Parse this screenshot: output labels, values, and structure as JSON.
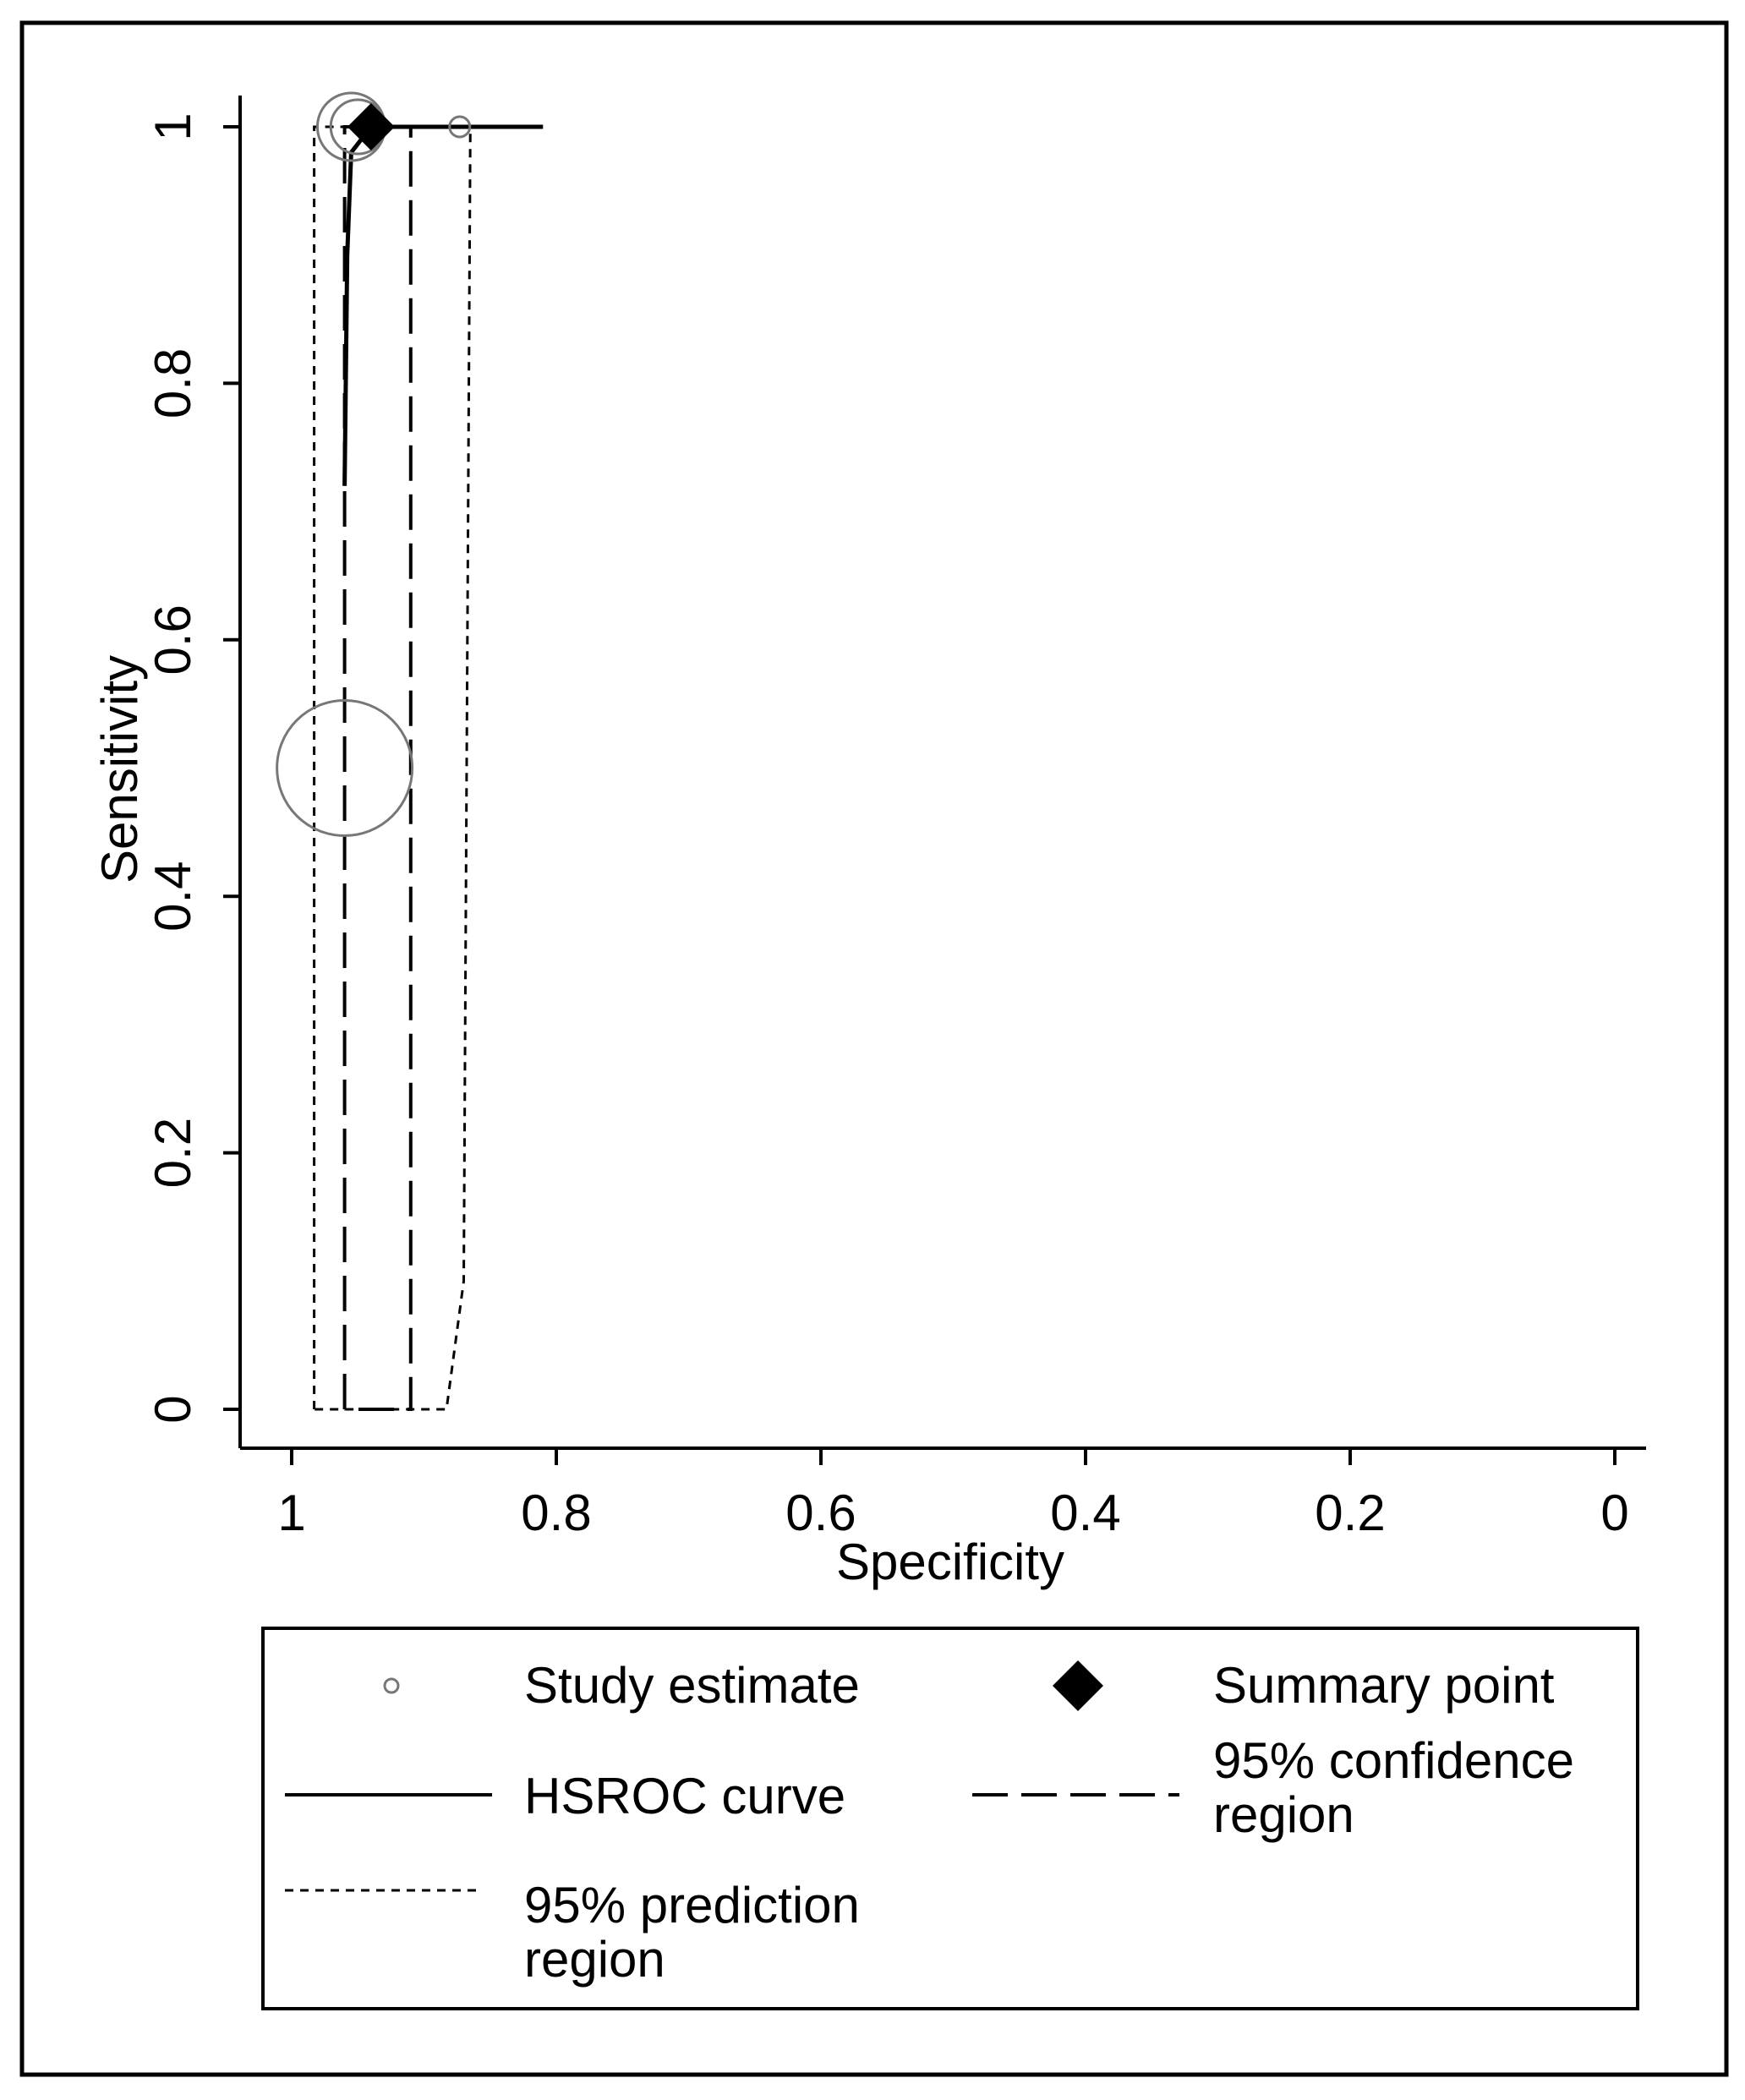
{
  "chart_data": {
    "type": "scatter",
    "title": "",
    "xlabel": "Specificity",
    "ylabel": "Sensitivity",
    "x_reversed": true,
    "xlim": [
      1,
      0
    ],
    "ylim": [
      0,
      1
    ],
    "x_ticks": [
      {
        "value": 1,
        "label": "1"
      },
      {
        "value": 0.8,
        "label": "0.8"
      },
      {
        "value": 0.6,
        "label": "0.6"
      },
      {
        "value": 0.4,
        "label": "0.4"
      },
      {
        "value": 0.2,
        "label": "0.2"
      },
      {
        "value": 0,
        "label": "0"
      }
    ],
    "y_ticks": [
      {
        "value": 0,
        "label": "0"
      },
      {
        "value": 0.2,
        "label": "0.2"
      },
      {
        "value": 0.4,
        "label": "0.4"
      },
      {
        "value": 0.6,
        "label": "0.6"
      },
      {
        "value": 0.8,
        "label": "0.8"
      },
      {
        "value": 1,
        "label": "1"
      }
    ],
    "grid": false,
    "legend_position": "bottom",
    "study_estimates": [
      {
        "specificity": 0.955,
        "sensitivity": 1.0,
        "weight": 0.05
      },
      {
        "specificity": 0.95,
        "sensitivity": 1.0,
        "weight": 0.04
      },
      {
        "specificity": 0.873,
        "sensitivity": 1.0,
        "weight": 0.015
      },
      {
        "specificity": 0.96,
        "sensitivity": 0.5,
        "weight": 0.1
      }
    ],
    "summary_point": {
      "specificity": 0.94,
      "sensitivity": 1.0
    },
    "hsroc_curve": [
      {
        "specificity": 0.81,
        "sensitivity": 1.0
      },
      {
        "specificity": 0.94,
        "sensitivity": 1.0
      },
      {
        "specificity": 0.955,
        "sensitivity": 0.98
      },
      {
        "specificity": 0.958,
        "sensitivity": 0.9
      },
      {
        "specificity": 0.96,
        "sensitivity": 0.72
      }
    ],
    "confidence_region": [
      {
        "specificity": 0.96,
        "sensitivity": 0.0
      },
      {
        "specificity": 0.96,
        "sensitivity": 1.0
      },
      {
        "specificity": 0.91,
        "sensitivity": 1.0
      },
      {
        "specificity": 0.91,
        "sensitivity": 0.0
      },
      {
        "specificity": 0.96,
        "sensitivity": 0.0
      }
    ],
    "prediction_region": [
      {
        "specificity": 0.983,
        "sensitivity": 0.0
      },
      {
        "specificity": 0.983,
        "sensitivity": 1.0
      },
      {
        "specificity": 0.865,
        "sensitivity": 1.0
      },
      {
        "specificity": 0.87,
        "sensitivity": 0.1
      },
      {
        "specificity": 0.883,
        "sensitivity": 0.0
      },
      {
        "specificity": 0.983,
        "sensitivity": 0.0
      }
    ],
    "legend": [
      {
        "symbol": "study-estimate",
        "label_lines": [
          "Study estimate"
        ]
      },
      {
        "symbol": "summary-point",
        "label_lines": [
          "Summary point"
        ]
      },
      {
        "symbol": "hsroc-curve",
        "label_lines": [
          "HSROC curve"
        ]
      },
      {
        "symbol": "confidence-region",
        "label_lines": [
          "95% confidence",
          "region"
        ]
      },
      {
        "symbol": "prediction-region",
        "label_lines": [
          "95% prediction",
          "region"
        ]
      }
    ]
  }
}
